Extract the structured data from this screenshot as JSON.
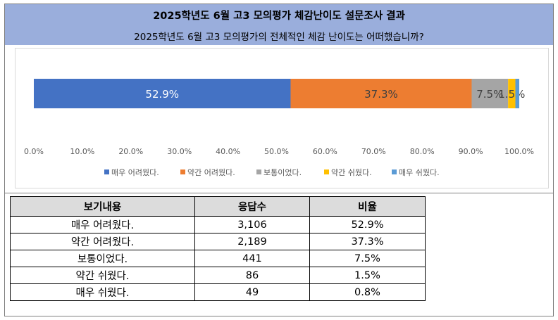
{
  "header": {
    "title": "2025학년도 6월 고3 모의평가 체감난이도 설문조사 결과",
    "subtitle": "2025학년도 6월 고3 모의평가의 전체적인 체감 난이도는 어떠했습니까?"
  },
  "chart_data": {
    "type": "bar",
    "orientation": "horizontal-stacked-100",
    "categories": [
      ""
    ],
    "series": [
      {
        "name": "매우 어려웠다.",
        "values": [
          52.9
        ],
        "label": "52.9%",
        "color": "#4472c4",
        "label_color": "#ffffff"
      },
      {
        "name": "약간 어려웠다.",
        "values": [
          37.3
        ],
        "label": "37.3%",
        "color": "#ed7d31",
        "label_color": "#404040"
      },
      {
        "name": "보통이었다.",
        "values": [
          7.5
        ],
        "label": "7.5%",
        "color": "#a5a5a5",
        "label_color": "#404040"
      },
      {
        "name": "약간 쉬웠다.",
        "values": [
          1.5
        ],
        "label": "1.5%",
        "color": "#ffc000",
        "label_color": "#404040"
      },
      {
        "name": "매우 쉬웠다.",
        "values": [
          0.8
        ],
        "label": "",
        "color": "#5b9bd5",
        "label_color": "#404040"
      }
    ],
    "xlim": [
      0,
      100
    ],
    "xticks": [
      "0.0%",
      "10.0%",
      "20.0%",
      "30.0%",
      "40.0%",
      "50.0%",
      "60.0%",
      "70.0%",
      "80.0%",
      "90.0%",
      "100.0%"
    ],
    "legend": "bottom",
    "grid": false
  },
  "table": {
    "headers": [
      "보기내용",
      "응답수",
      "비율"
    ],
    "rows": [
      [
        "매우 어려웠다.",
        "3,106",
        "52.9%"
      ],
      [
        "약간 어려웠다.",
        "2,189",
        "37.3%"
      ],
      [
        "보통이었다.",
        "441",
        "7.5%"
      ],
      [
        "약간 쉬웠다.",
        "86",
        "1.5%"
      ],
      [
        "매우 쉬웠다.",
        "49",
        "0.8%"
      ]
    ]
  }
}
